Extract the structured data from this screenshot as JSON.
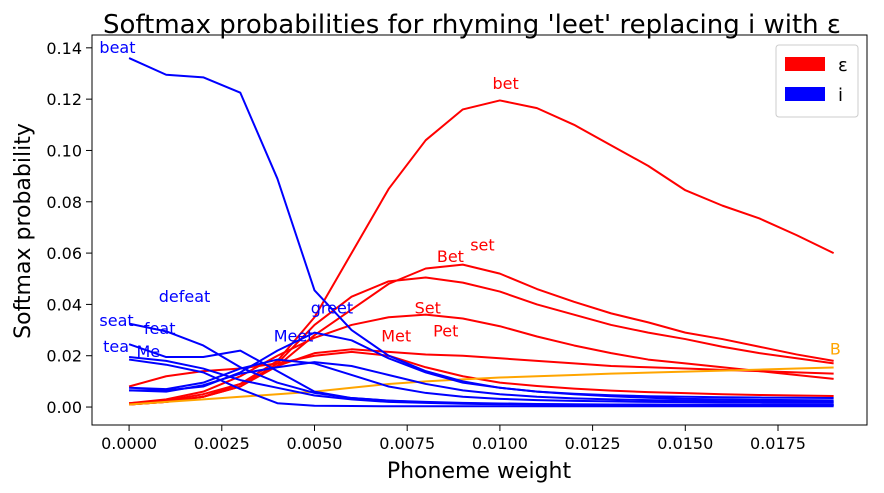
{
  "chart_data": {
    "type": "line",
    "title": "Softmax probabilities for rhyming 'leet' replacing i with ɛ",
    "xlabel": "Phoneme weight",
    "ylabel": "Softmax probability",
    "xlim": [
      -0.001,
      0.0199
    ],
    "ylim": [
      -0.007,
      0.145
    ],
    "xticks": [
      0.0,
      0.0025,
      0.005,
      0.0075,
      0.01,
      0.0125,
      0.015,
      0.0175
    ],
    "xtick_labels": [
      "0.0000",
      "0.0025",
      "0.0050",
      "0.0075",
      "0.0100",
      "0.0125",
      "0.0150",
      "0.0175"
    ],
    "yticks": [
      0.0,
      0.02,
      0.04,
      0.06,
      0.08,
      0.1,
      0.12,
      0.14
    ],
    "ytick_labels": [
      "0.00",
      "0.02",
      "0.04",
      "0.06",
      "0.08",
      "0.10",
      "0.12",
      "0.14"
    ],
    "grid": false,
    "legend_position": "top-right",
    "legend": [
      {
        "label": "ɛ",
        "color": "#ff0000"
      },
      {
        "label": "i",
        "color": "#0000ff"
      }
    ],
    "x": [
      0,
      0.001,
      0.002,
      0.003,
      0.004,
      0.005,
      0.006,
      0.007,
      0.008,
      0.009,
      0.01,
      0.011,
      0.012,
      0.013,
      0.014,
      0.015,
      0.016,
      0.017,
      0.018,
      0.019
    ],
    "series": [
      {
        "name": "bet",
        "color": "#ff0000",
        "label_x": 0.0098,
        "label_y": 0.124,
        "values": [
          0.0015,
          0.0025,
          0.005,
          0.009,
          0.018,
          0.035,
          0.06,
          0.085,
          0.104,
          0.116,
          0.1195,
          0.1165,
          0.11,
          0.102,
          0.094,
          0.0845,
          0.0785,
          0.0735,
          0.067,
          0.06
        ]
      },
      {
        "name": "set",
        "color": "#ff0000",
        "label_x": 0.0092,
        "label_y": 0.061,
        "values": [
          0.001,
          0.002,
          0.004,
          0.008,
          0.016,
          0.028,
          0.038,
          0.048,
          0.054,
          0.0555,
          0.052,
          0.046,
          0.041,
          0.0365,
          0.033,
          0.029,
          0.0265,
          0.0235,
          0.0205,
          0.018
        ]
      },
      {
        "name": "Bet",
        "color": "#ff0000",
        "label_x": 0.0083,
        "label_y": 0.0565,
        "values": [
          0.001,
          0.002,
          0.004,
          0.008,
          0.017,
          0.032,
          0.043,
          0.049,
          0.0505,
          0.0485,
          0.045,
          0.04,
          0.036,
          0.032,
          0.029,
          0.0265,
          0.0235,
          0.021,
          0.019,
          0.017
        ]
      },
      {
        "name": "Set",
        "color": "#ff0000",
        "label_x": 0.0077,
        "label_y": 0.0365,
        "values": [
          0.0015,
          0.003,
          0.006,
          0.012,
          0.02,
          0.027,
          0.032,
          0.035,
          0.036,
          0.0345,
          0.0315,
          0.0275,
          0.024,
          0.021,
          0.0185,
          0.017,
          0.0155,
          0.014,
          0.0125,
          0.011
        ]
      },
      {
        "name": "Met",
        "color": "#ff0000",
        "label_x": 0.0068,
        "label_y": 0.0255,
        "values": [
          0.001,
          0.002,
          0.004,
          0.009,
          0.016,
          0.021,
          0.0225,
          0.0215,
          0.0205,
          0.02,
          0.019,
          0.018,
          0.017,
          0.016,
          0.0155,
          0.015,
          0.0145,
          0.014,
          0.0135,
          0.013
        ]
      },
      {
        "name": "Pet",
        "color": "#ff0000",
        "label_x": 0.0082,
        "label_y": 0.0275,
        "values": [
          0.008,
          0.012,
          0.014,
          0.015,
          0.017,
          0.02,
          0.0215,
          0.02,
          0.0155,
          0.012,
          0.0095,
          0.0082,
          0.0072,
          0.0064,
          0.0058,
          0.0054,
          0.005,
          0.0047,
          0.0045,
          0.0043
        ]
      },
      {
        "name": "B",
        "color": "#ffa500",
        "label_x": 0.0189,
        "label_y": 0.0205,
        "values": [
          0.001,
          0.002,
          0.003,
          0.004,
          0.005,
          0.006,
          0.0075,
          0.009,
          0.01,
          0.0108,
          0.0115,
          0.012,
          0.0125,
          0.013,
          0.0134,
          0.0138,
          0.0142,
          0.0146,
          0.015,
          0.0154
        ]
      },
      {
        "name": "beat",
        "color": "#0000ff",
        "label_x": -0.0008,
        "label_y": 0.138,
        "values": [
          0.136,
          0.1295,
          0.1285,
          0.1225,
          0.089,
          0.0455,
          0.03,
          0.02,
          0.014,
          0.01,
          0.0075,
          0.006,
          0.005,
          0.0042,
          0.0036,
          0.0032,
          0.003,
          0.0028,
          0.0027,
          0.0026
        ]
      },
      {
        "name": "defeat",
        "color": "#0000ff",
        "label_x": 0.0008,
        "label_y": 0.041,
        "values": [
          0.0325,
          0.0295,
          0.024,
          0.0155,
          0.0095,
          0.0055,
          0.0035,
          0.0025,
          0.002,
          0.0016,
          0.0014,
          0.0012,
          0.0011,
          0.001,
          0.001,
          0.0009,
          0.0009,
          0.0009,
          0.0009,
          0.0009
        ]
      },
      {
        "name": "seat",
        "color": "#0000ff",
        "label_x": -0.0008,
        "label_y": 0.0315,
        "values": [
          0.0245,
          0.0195,
          0.0195,
          0.022,
          0.014,
          0.006,
          0.0035,
          0.0025,
          0.0018,
          0.0015,
          0.0013,
          0.0011,
          0.001,
          0.001,
          0.0009,
          0.0009,
          0.0009,
          0.0009,
          0.0009,
          0.0009
        ]
      },
      {
        "name": "feat",
        "color": "#0000ff",
        "label_x": 0.0004,
        "label_y": 0.0285,
        "values": [
          0.0195,
          0.018,
          0.015,
          0.0105,
          0.0075,
          0.0045,
          0.003,
          0.002,
          0.0016,
          0.0013,
          0.0011,
          0.001,
          0.0009,
          0.0009,
          0.0008,
          0.0008,
          0.0008,
          0.0008,
          0.0008,
          0.0008
        ]
      },
      {
        "name": "tea",
        "color": "#0000ff",
        "label_x": -0.0007,
        "label_y": 0.0215,
        "values": [
          0.0185,
          0.0165,
          0.0135,
          0.007,
          0.0015,
          0.0005,
          0.0004,
          0.0003,
          0.0003,
          0.0003,
          0.0003,
          0.0003,
          0.0003,
          0.0003,
          0.0003,
          0.0003,
          0.0003,
          0.0003,
          0.0003,
          0.0003
        ]
      },
      {
        "name": "Me",
        "color": "#0000ff",
        "label_x": 0.0002,
        "label_y": 0.0195,
        "values": [
          0.0075,
          0.007,
          0.0095,
          0.015,
          0.0185,
          0.017,
          0.0125,
          0.008,
          0.0055,
          0.004,
          0.0032,
          0.0027,
          0.0024,
          0.0022,
          0.002,
          0.0019,
          0.0018,
          0.0018,
          0.0017,
          0.0017
        ]
      },
      {
        "name": "greet",
        "color": "#0000ff",
        "label_x": 0.0049,
        "label_y": 0.0365,
        "values": [
          0.0065,
          0.0065,
          0.008,
          0.0135,
          0.022,
          0.029,
          0.026,
          0.019,
          0.0135,
          0.0095,
          0.0075,
          0.006,
          0.0052,
          0.0046,
          0.0042,
          0.004,
          0.0038,
          0.0037,
          0.0036,
          0.0035
        ]
      },
      {
        "name": "Meet",
        "color": "#0000ff",
        "label_x": 0.0039,
        "label_y": 0.0255,
        "values": [
          0.0065,
          0.006,
          0.0085,
          0.013,
          0.0155,
          0.0175,
          0.016,
          0.0125,
          0.009,
          0.0065,
          0.005,
          0.004,
          0.0034,
          0.003,
          0.0027,
          0.0025,
          0.0023,
          0.0022,
          0.0021,
          0.002
        ]
      }
    ]
  }
}
